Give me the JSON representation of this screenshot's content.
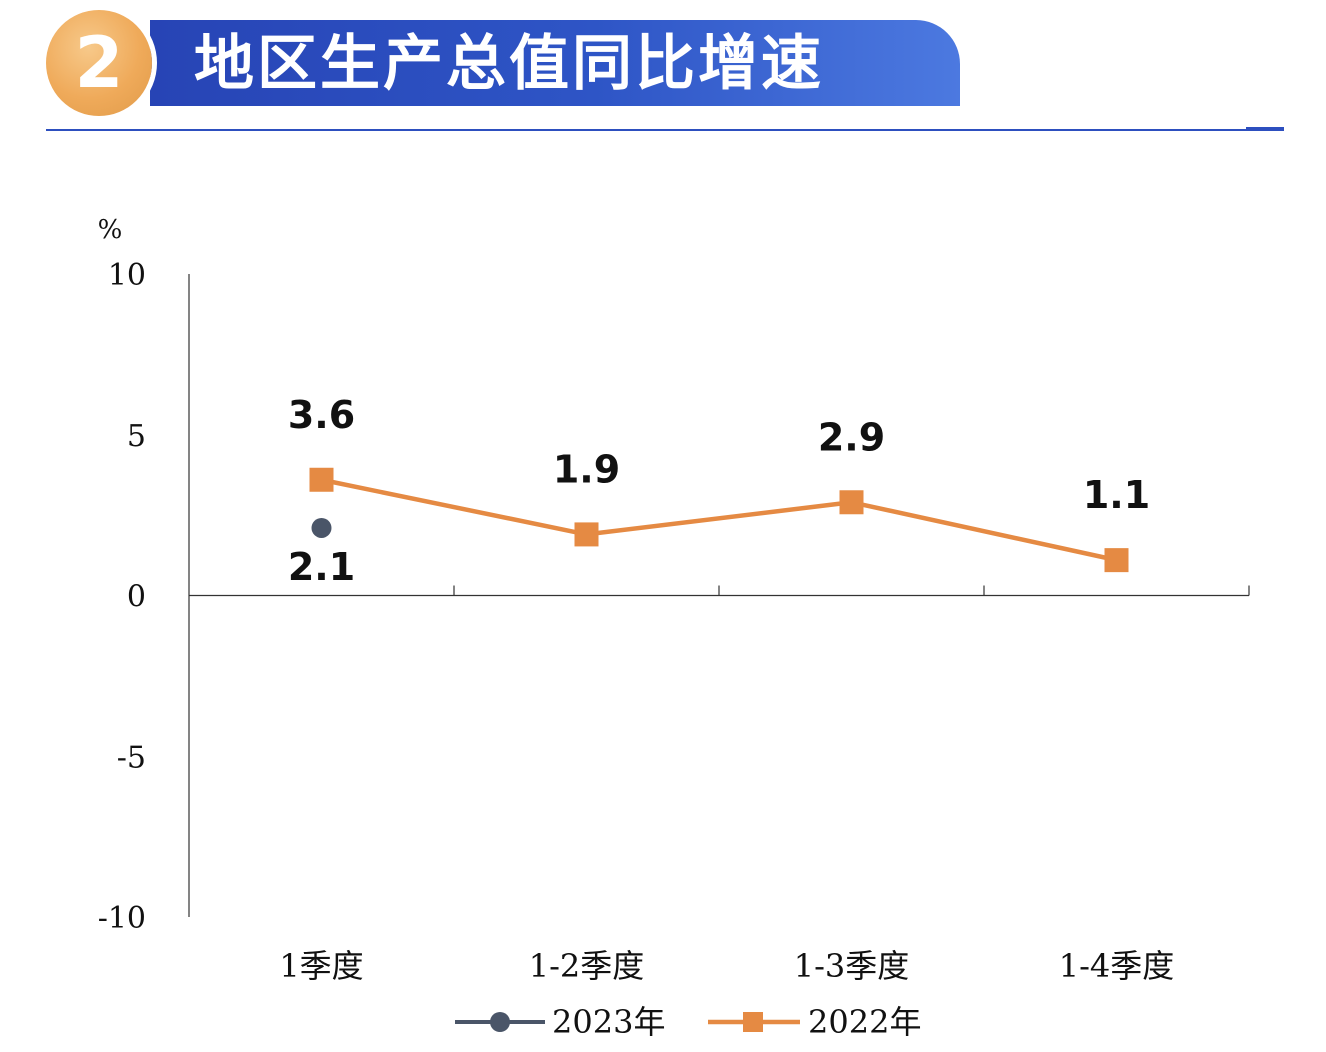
{
  "header": {
    "badge_number": "2",
    "title": "地区生产总值同比增速"
  },
  "colors": {
    "banner": "#2e55c6",
    "badge": "#efaa5a",
    "series_2023": "#4a5568",
    "series_2022": "#e58a43",
    "axis": "#333333"
  },
  "chart_data": {
    "type": "line",
    "categories": [
      "1季度",
      "1-2季度",
      "1-3季度",
      "1-4季度"
    ],
    "ylabel": "%",
    "ylim": [
      -10,
      10
    ],
    "yticks": [
      "10",
      "5",
      "0",
      "-5",
      "-10"
    ],
    "series": [
      {
        "name": "2023年",
        "marker": "circle",
        "values": [
          2.1,
          null,
          null,
          null
        ],
        "labels": [
          "2.1",
          "",
          "",
          ""
        ]
      },
      {
        "name": "2022年",
        "marker": "square",
        "values": [
          3.6,
          1.9,
          2.9,
          1.1
        ],
        "labels": [
          "3.6",
          "1.9",
          "2.9",
          "1.1"
        ]
      }
    ],
    "legend_position": "bottom"
  }
}
